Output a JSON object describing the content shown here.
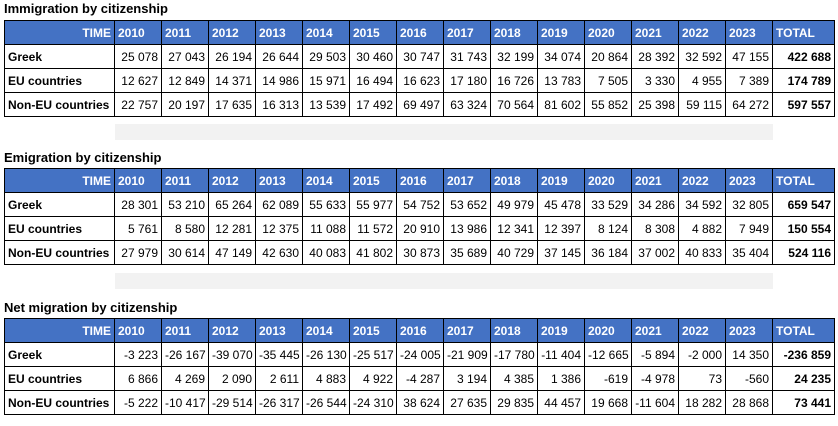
{
  "header": {
    "time_label": "TIME",
    "years": [
      "2010",
      "2011",
      "2012",
      "2013",
      "2014",
      "2015",
      "2016",
      "2017",
      "2018",
      "2019",
      "2020",
      "2021",
      "2022",
      "2023"
    ],
    "total_label": "TOTAL"
  },
  "sections": [
    {
      "title": "Immigration by citizenship",
      "rows": [
        {
          "label": "Greek",
          "values": [
            "25 078",
            "27 043",
            "26 194",
            "26 644",
            "29 503",
            "30 460",
            "30 747",
            "31 743",
            "32 199",
            "34 074",
            "20 864",
            "28 392",
            "32 592",
            "47 155"
          ],
          "total": "422 688"
        },
        {
          "label": "EU countries",
          "values": [
            "12 627",
            "12 849",
            "14 371",
            "14 986",
            "15 971",
            "16 494",
            "16 623",
            "17 180",
            "16 726",
            "13 783",
            "7 505",
            "3 330",
            "4 955",
            "7 389"
          ],
          "total": "174 789"
        },
        {
          "label": "Non-EU countries",
          "values": [
            "22 757",
            "20 197",
            "17 635",
            "16 313",
            "13 539",
            "17 492",
            "69 497",
            "63 324",
            "70 564",
            "81 602",
            "55 852",
            "25 398",
            "59 115",
            "64 272"
          ],
          "total": "597 557"
        }
      ]
    },
    {
      "title": "Emigration by citizenship",
      "rows": [
        {
          "label": "Greek",
          "values": [
            "28 301",
            "53 210",
            "65 264",
            "62 089",
            "55 633",
            "55 977",
            "54 752",
            "53 652",
            "49 979",
            "45 478",
            "33 529",
            "34 286",
            "34 592",
            "32 805"
          ],
          "total": "659 547"
        },
        {
          "label": "EU countries",
          "values": [
            "5 761",
            "8 580",
            "12 281",
            "12 375",
            "11 088",
            "11 572",
            "20 910",
            "13 986",
            "12 341",
            "12 397",
            "8 124",
            "8 308",
            "4 882",
            "7 949"
          ],
          "total": "150 554"
        },
        {
          "label": "Non-EU countries",
          "values": [
            "27 979",
            "30 614",
            "47 149",
            "42 630",
            "40 083",
            "41 802",
            "30 873",
            "35 689",
            "40 729",
            "37 145",
            "36 184",
            "37 002",
            "40 833",
            "35 404"
          ],
          "total": "524 116"
        }
      ]
    },
    {
      "title": "Net migration by citizenship",
      "rows": [
        {
          "label": "Greek",
          "values": [
            "-3 223",
            "-26 167",
            "-39 070",
            "-35 445",
            "-26 130",
            "-25 517",
            "-24 005",
            "-21 909",
            "-17 780",
            "-11 404",
            "-12 665",
            "-5 894",
            "-2 000",
            "14 350"
          ],
          "total": "-236 859"
        },
        {
          "label": "EU countries",
          "values": [
            "6 866",
            "4 269",
            "2 090",
            "2 611",
            "4 883",
            "4 922",
            "-4 287",
            "3 194",
            "4 385",
            "1 386",
            "-619",
            "-4 978",
            "73",
            "-560"
          ],
          "total": "24 235"
        },
        {
          "label": "Non-EU countries",
          "values": [
            "-5 222",
            "-10 417",
            "-29 514",
            "-26 317",
            "-26 544",
            "-24 310",
            "38 624",
            "27 635",
            "29 835",
            "44 457",
            "19 668",
            "-11 604",
            "18 282",
            "28 868"
          ],
          "total": "73 441"
        }
      ]
    }
  ]
}
